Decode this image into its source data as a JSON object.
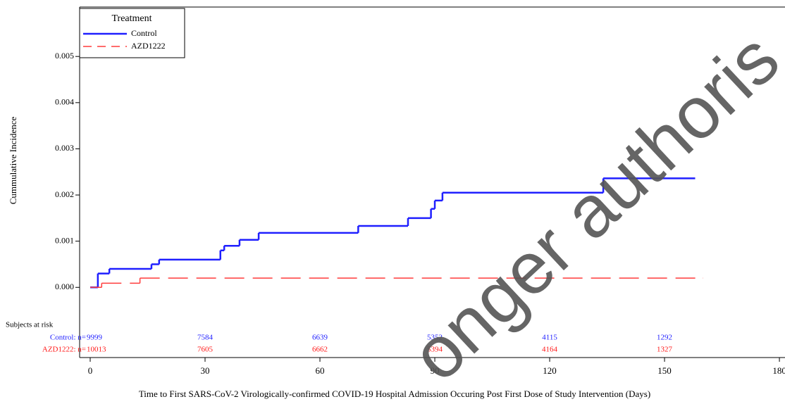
{
  "chart_data": {
    "type": "step",
    "xlabel": "Time to First SARS-CoV-2 Virologically-confirmed COVID-19 Hospital Admission Occuring Post First Dose of Study Intervention (Days)",
    "ylabel": "Cummulative Incidence",
    "xlim": [
      -2.76,
      181.46
    ],
    "ylim": [
      -0.00152,
      0.00607
    ],
    "xticks": [
      0,
      30,
      60,
      90,
      120,
      150,
      180
    ],
    "yticks": [
      {
        "value": 0,
        "label": "0.000"
      },
      0.001,
      0.002,
      0.003,
      0.004,
      0.005
    ],
    "legend": {
      "title": "Treatment",
      "position": "upper left"
    },
    "series": [
      {
        "name": "Control",
        "color": "#1f1fff",
        "dashed": false,
        "x": [
          0,
          2,
          5,
          16,
          18,
          34,
          35,
          39,
          44,
          70,
          83,
          89,
          90,
          92,
          134,
          158
        ],
        "values": [
          0,
          0.0003,
          0.0004,
          0.0005,
          0.0006,
          0.0008,
          0.0009,
          0.00103,
          0.00118,
          0.00133,
          0.0015,
          0.0017,
          0.00188,
          0.00205,
          0.00236,
          0.00236
        ]
      },
      {
        "name": "AZD1222",
        "color": "#ff3b3b",
        "dashed": true,
        "x": [
          0,
          3,
          13,
          160
        ],
        "values": [
          0,
          9e-05,
          0.0002,
          0.0002
        ]
      }
    ],
    "risk_table": {
      "title": "Subjects at risk",
      "times": [
        0,
        30,
        60,
        90,
        120,
        150
      ],
      "rows": [
        {
          "label": "Control: n=",
          "color": "#1f1fff",
          "counts": [
            9999,
            7584,
            6639,
            5352,
            4115,
            1292
          ]
        },
        {
          "label": "AZD1222: n=",
          "color": "#ff1a1a",
          "counts": [
            10013,
            7605,
            6662,
            5394,
            4164,
            1327
          ]
        }
      ]
    },
    "watermark": "onger authoris"
  }
}
